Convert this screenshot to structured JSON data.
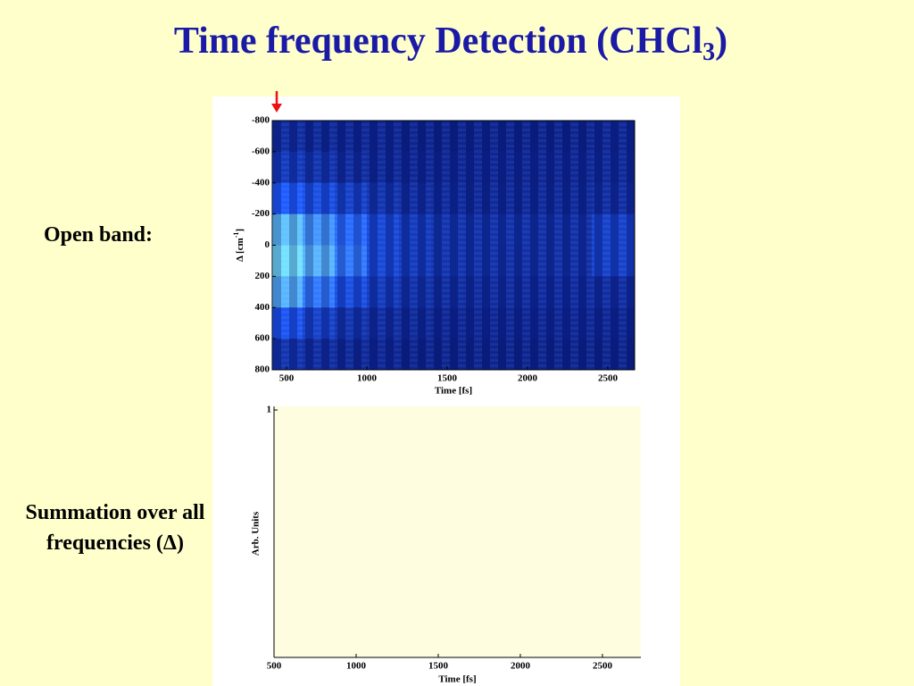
{
  "title": {
    "text": "Time frequency Detection (CHCl",
    "subscript": "3",
    "close": ")"
  },
  "labels": {
    "open_band": "Open band:",
    "summation_line1": "Summation over all",
    "summation_line2": "frequencies (Δ)"
  },
  "chart_data": [
    {
      "type": "heatmap",
      "xlabel": "Time [fs]",
      "ylabel": {
        "text": "Δ [cm",
        "superscript": "-1",
        "close": "]"
      },
      "xlim": [
        411,
        2667
      ],
      "xticks": [
        500,
        1000,
        1500,
        2000,
        2500
      ],
      "ylim": [
        -800,
        800
      ],
      "yticks": [
        -800,
        -600,
        -400,
        -200,
        0,
        200,
        400,
        600,
        800
      ],
      "y_reversed": true,
      "x_bins": [
        411,
        600,
        800,
        1000,
        1200,
        1400,
        1600,
        1800,
        2000,
        2200,
        2400,
        2667
      ],
      "y_bins": [
        -800,
        -600,
        -400,
        -200,
        0,
        200,
        400,
        600,
        800
      ],
      "z": [
        [
          0.15,
          0.12,
          0.1,
          0.1,
          0.08,
          0.08,
          0.08,
          0.08,
          0.08,
          0.08,
          0.1
        ],
        [
          0.25,
          0.2,
          0.15,
          0.12,
          0.1,
          0.1,
          0.1,
          0.1,
          0.1,
          0.1,
          0.12
        ],
        [
          0.5,
          0.4,
          0.3,
          0.2,
          0.15,
          0.13,
          0.12,
          0.12,
          0.12,
          0.12,
          0.15
        ],
        [
          0.85,
          0.7,
          0.55,
          0.35,
          0.25,
          0.2,
          0.18,
          0.18,
          0.17,
          0.17,
          0.3
        ],
        [
          0.95,
          0.8,
          0.6,
          0.35,
          0.25,
          0.2,
          0.18,
          0.17,
          0.17,
          0.17,
          0.3
        ],
        [
          0.8,
          0.6,
          0.4,
          0.25,
          0.18,
          0.15,
          0.14,
          0.14,
          0.13,
          0.13,
          0.15
        ],
        [
          0.45,
          0.3,
          0.2,
          0.15,
          0.12,
          0.1,
          0.1,
          0.1,
          0.1,
          0.1,
          0.1
        ],
        [
          0.2,
          0.15,
          0.12,
          0.1,
          0.08,
          0.08,
          0.08,
          0.08,
          0.08,
          0.08,
          0.08
        ]
      ],
      "colormap": [
        "#0a1a7a",
        "#1e5cff",
        "#7ef0ff"
      ]
    },
    {
      "type": "line",
      "xlabel": "Time [fs]",
      "ylabel": "Arb. Units",
      "xlim": [
        500,
        2734
      ],
      "xticks": [
        500,
        1000,
        1500,
        2000,
        2500
      ],
      "ylim": [
        0,
        1
      ],
      "yticks": [
        1
      ]
    }
  ]
}
